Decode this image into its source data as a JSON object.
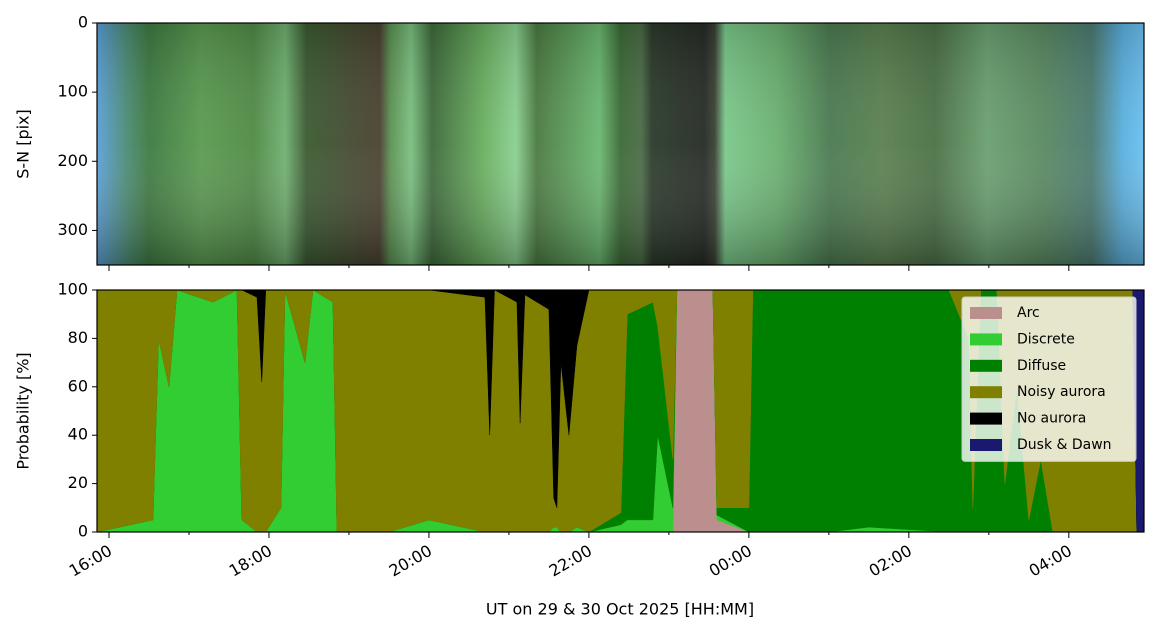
{
  "chart_data": [
    {
      "type": "image",
      "ylabel": "S-N [pix]",
      "ylim": [
        350,
        0
      ],
      "yticks": [
        0,
        100,
        200,
        300
      ]
    },
    {
      "type": "area",
      "stacked": true,
      "ylabel": "Probability [%]",
      "xlabel": "UT on 29 & 30 Oct 2025 [HH:MM]",
      "xlim": [
        15.85,
        28.94
      ],
      "ylim": [
        0,
        100
      ],
      "yticks": [
        0,
        20,
        40,
        60,
        80,
        100
      ],
      "xticks": [
        {
          "value": 16,
          "label": "16:00"
        },
        {
          "value": 18,
          "label": "18:00"
        },
        {
          "value": 20,
          "label": "20:00"
        },
        {
          "value": 22,
          "label": "22:00"
        },
        {
          "value": 24,
          "label": "00:00"
        },
        {
          "value": 26,
          "label": "02:00"
        },
        {
          "value": 28,
          "label": "04:00"
        }
      ],
      "xminorticks": [
        17,
        19,
        21,
        23,
        25,
        27
      ],
      "legend": "upper right",
      "x": [
        15.85,
        16.55,
        16.62,
        16.75,
        16.85,
        17.3,
        17.6,
        17.66,
        17.85,
        17.91,
        17.96,
        18.15,
        18.2,
        18.45,
        18.55,
        18.8,
        18.85,
        19.5,
        20.0,
        20.7,
        20.76,
        20.82,
        21.1,
        21.14,
        21.2,
        21.5,
        21.56,
        21.6,
        21.65,
        21.75,
        21.85,
        22.0,
        22.4,
        22.48,
        22.8,
        22.86,
        23.05,
        23.1,
        23.55,
        23.6,
        24.0,
        24.05,
        25.0,
        25.5,
        26.5,
        26.75,
        26.8,
        26.9,
        27.1,
        27.2,
        27.35,
        27.5,
        27.65,
        27.8,
        28.8,
        28.85,
        28.94
      ],
      "series": [
        {
          "name": "Arc",
          "color": "#bc8f8f",
          "values": [
            0,
            0,
            0,
            0,
            0,
            0,
            0,
            0,
            0,
            0,
            0,
            0,
            0,
            0,
            0,
            0,
            0,
            0,
            0,
            0,
            0,
            0,
            0,
            0,
            0,
            0,
            0,
            0,
            0,
            0,
            0,
            0,
            0,
            0,
            0,
            0,
            0,
            100,
            100,
            5,
            0,
            0,
            0,
            0,
            0,
            0,
            0,
            0,
            0,
            0,
            0,
            0,
            0,
            0,
            0,
            0,
            0
          ]
        },
        {
          "name": "Discrete",
          "color": "#32cd32",
          "values": [
            0,
            5,
            80,
            60,
            100,
            95,
            100,
            5,
            0,
            0,
            0,
            10,
            100,
            70,
            100,
            95,
            0,
            0,
            5,
            0,
            0,
            0,
            0,
            0,
            0,
            0,
            2,
            2,
            0,
            0,
            2,
            0,
            3,
            5,
            5,
            40,
            10,
            0,
            0,
            2,
            0,
            0,
            0,
            2,
            0,
            0,
            0,
            0,
            0,
            0,
            0,
            0,
            0,
            0,
            0,
            0,
            0
          ]
        },
        {
          "name": "Diffuse",
          "color": "#008000",
          "values": [
            0,
            0,
            0,
            0,
            0,
            0,
            0,
            0,
            0,
            0,
            0,
            0,
            0,
            0,
            0,
            0,
            0,
            0,
            0,
            0,
            0,
            0,
            0,
            0,
            0,
            0,
            0,
            0,
            0,
            0,
            0,
            0,
            5,
            85,
            90,
            45,
            20,
            0,
            0,
            3,
            10,
            100,
            100,
            98,
            100,
            80,
            10,
            100,
            100,
            20,
            60,
            5,
            30,
            0,
            0,
            0,
            0
          ]
        },
        {
          "name": "Noisy aurora",
          "color": "#808000",
          "values": [
            100,
            95,
            20,
            40,
            0,
            5,
            0,
            95,
            97,
            62,
            100,
            90,
            0,
            30,
            0,
            5,
            100,
            100,
            95,
            97,
            40,
            100,
            95,
            45,
            98,
            92,
            12,
            8,
            70,
            40,
            75,
            100,
            92,
            10,
            5,
            15,
            70,
            0,
            0,
            90,
            90,
            0,
            0,
            0,
            0,
            20,
            90,
            0,
            0,
            80,
            40,
            95,
            70,
            100,
            100,
            0,
            0
          ]
        },
        {
          "name": "No aurora",
          "color": "#000000",
          "values": [
            0,
            0,
            0,
            0,
            0,
            0,
            0,
            0,
            3,
            38,
            0,
            0,
            0,
            0,
            0,
            0,
            0,
            0,
            0,
            3,
            60,
            0,
            5,
            55,
            2,
            8,
            86,
            90,
            30,
            60,
            23,
            0,
            0,
            0,
            0,
            0,
            0,
            0,
            0,
            0,
            0,
            0,
            0,
            0,
            0,
            0,
            0,
            0,
            0,
            0,
            0,
            0,
            0,
            0,
            0,
            0,
            0
          ]
        },
        {
          "name": "Dusk & Dawn",
          "color": "#191970",
          "values": [
            0,
            0,
            0,
            0,
            0,
            0,
            0,
            0,
            0,
            0,
            0,
            0,
            0,
            0,
            0,
            0,
            0,
            0,
            0,
            0,
            0,
            0,
            0,
            0,
            0,
            0,
            0,
            0,
            0,
            0,
            0,
            0,
            0,
            0,
            0,
            0,
            0,
            0,
            0,
            0,
            0,
            0,
            0,
            0,
            0,
            0,
            0,
            0,
            0,
            0,
            0,
            0,
            0,
            0,
            0,
            100,
            100
          ]
        }
      ]
    }
  ]
}
